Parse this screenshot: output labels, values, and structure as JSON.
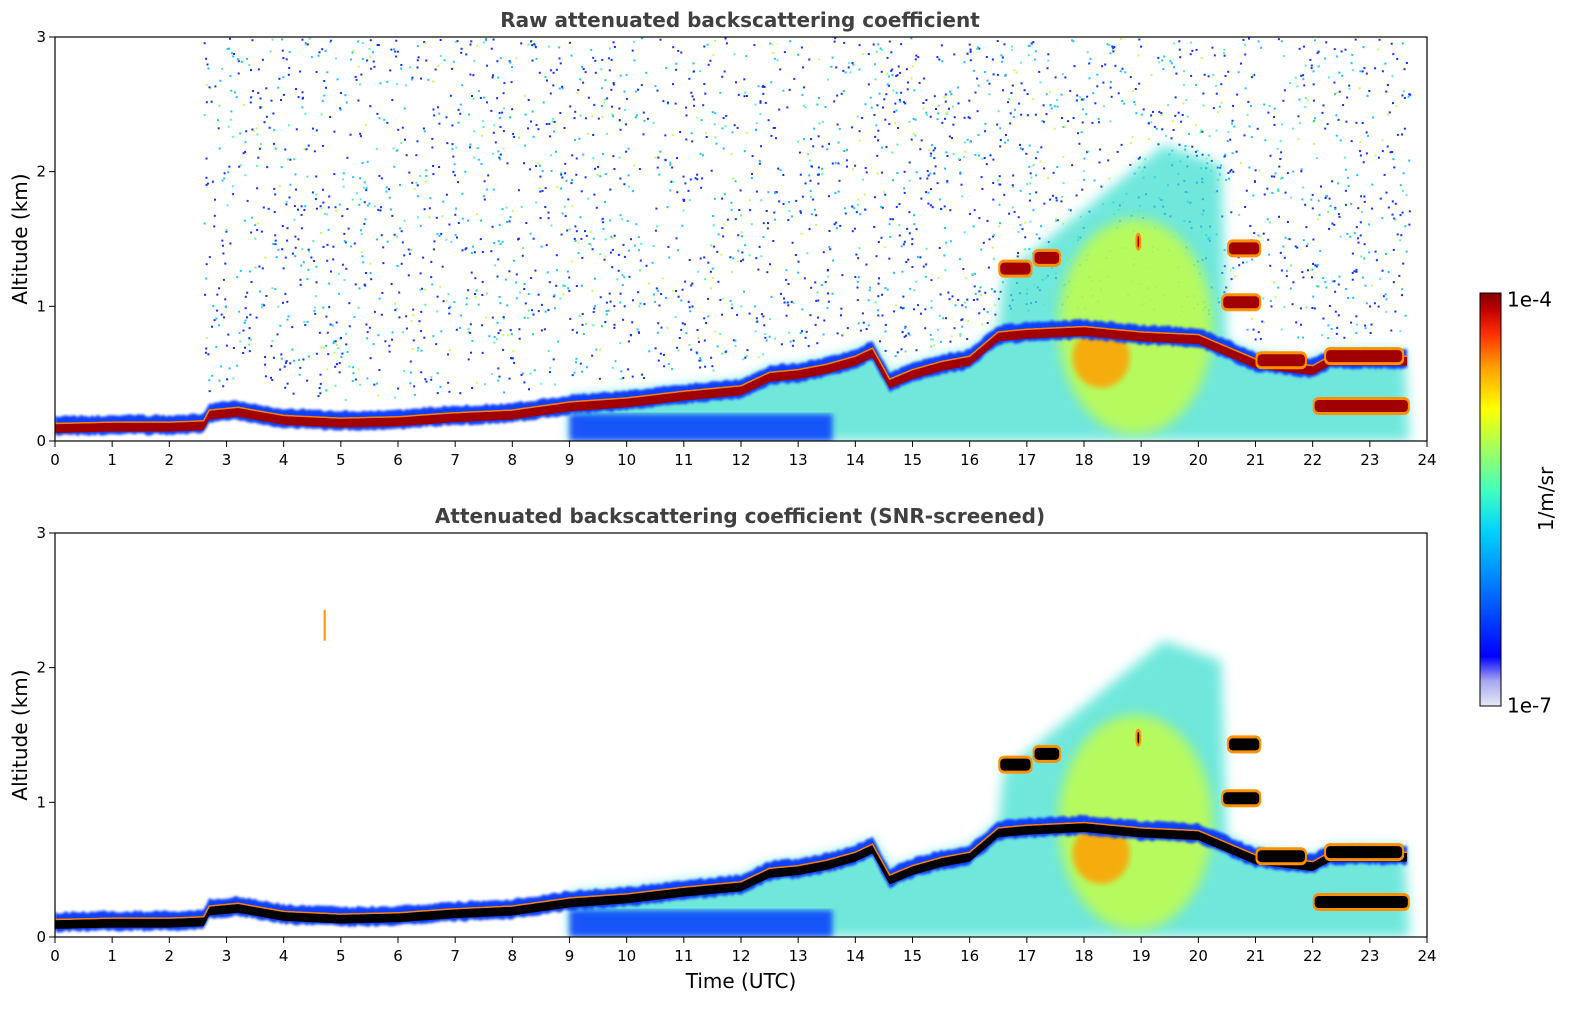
{
  "chart_data": [
    {
      "type": "heatmap",
      "title": "Raw attenuated backscattering coefficient",
      "xlabel": "",
      "ylabel": "Altitude (km)",
      "xlim": [
        0,
        24
      ],
      "ylim": [
        0,
        3
      ],
      "xticks": [
        "0",
        "1",
        "2",
        "3",
        "4",
        "5",
        "6",
        "7",
        "8",
        "9",
        "10",
        "11",
        "12",
        "13",
        "14",
        "15",
        "16",
        "17",
        "18",
        "19",
        "20",
        "21",
        "22",
        "23",
        "24"
      ],
      "yticks": [
        "0",
        "1",
        "2",
        "3"
      ],
      "screened": false
    },
    {
      "type": "heatmap",
      "title": "Attenuated backscattering coefficient (SNR-screened)",
      "xlabel": "Time (UTC)",
      "ylabel": "Altitude (km)",
      "xlim": [
        0,
        24
      ],
      "ylim": [
        0,
        3
      ],
      "xticks": [
        "0",
        "1",
        "2",
        "3",
        "4",
        "5",
        "6",
        "7",
        "8",
        "9",
        "10",
        "11",
        "12",
        "13",
        "14",
        "15",
        "16",
        "17",
        "18",
        "19",
        "20",
        "21",
        "22",
        "23",
        "24"
      ],
      "yticks": [
        "0",
        "1",
        "2",
        "3"
      ],
      "screened": true
    }
  ],
  "colorbar": {
    "label": "1/m/sr",
    "max_label": "1e-4",
    "min_label": "1e-7",
    "scale": "log",
    "colors": [
      "#e8e8f8",
      "#a8a8f0",
      "#0000ff",
      "#0080ff",
      "#00d0ff",
      "#40ffc0",
      "#a0ff60",
      "#ffff00",
      "#ffa000",
      "#ff3000",
      "#c00000",
      "#800000"
    ]
  },
  "features": {
    "boundary_layer_top_km": [
      [
        0,
        0.12
      ],
      [
        1,
        0.13
      ],
      [
        2,
        0.13
      ],
      [
        2.6,
        0.14
      ],
      [
        2.7,
        0.22
      ],
      [
        3.2,
        0.24
      ],
      [
        4,
        0.18
      ],
      [
        5,
        0.16
      ],
      [
        6,
        0.17
      ],
      [
        7,
        0.2
      ],
      [
        8,
        0.22
      ],
      [
        9,
        0.28
      ],
      [
        10,
        0.31
      ],
      [
        11,
        0.36
      ],
      [
        12,
        0.4
      ],
      [
        12.5,
        0.5
      ],
      [
        13,
        0.52
      ],
      [
        13.5,
        0.56
      ],
      [
        14,
        0.62
      ],
      [
        14.3,
        0.68
      ],
      [
        14.6,
        0.45
      ],
      [
        15,
        0.52
      ],
      [
        15.5,
        0.58
      ],
      [
        16,
        0.62
      ],
      [
        16.5,
        0.8
      ],
      [
        17,
        0.82
      ],
      [
        18,
        0.84
      ],
      [
        19,
        0.8
      ],
      [
        20,
        0.78
      ],
      [
        21,
        0.6
      ],
      [
        22,
        0.55
      ],
      [
        22.3,
        0.62
      ],
      [
        23,
        0.62
      ],
      [
        23.7,
        0.62
      ]
    ],
    "cloud_layers": [
      {
        "t_start": 16.5,
        "t_end": 17.1,
        "alt_km": 1.28
      },
      {
        "t_start": 17.1,
        "t_end": 17.6,
        "alt_km": 1.36
      },
      {
        "t_start": 18.9,
        "t_end": 19.0,
        "alt_km": 1.48
      },
      {
        "t_start": 20.5,
        "t_end": 21.1,
        "alt_km": 1.43
      },
      {
        "t_start": 20.4,
        "t_end": 21.1,
        "alt_km": 1.03
      },
      {
        "t_start": 21.0,
        "t_end": 21.9,
        "alt_km": 0.6
      },
      {
        "t_start": 22.2,
        "t_end": 23.6,
        "alt_km": 0.63
      },
      {
        "t_start": 22.0,
        "t_end": 23.7,
        "alt_km": 0.26
      }
    ],
    "aerosol_plume": {
      "t_start": 17.5,
      "t_end": 21.0,
      "peak_time": 19.4,
      "peak_alt_km": 2.2
    }
  }
}
